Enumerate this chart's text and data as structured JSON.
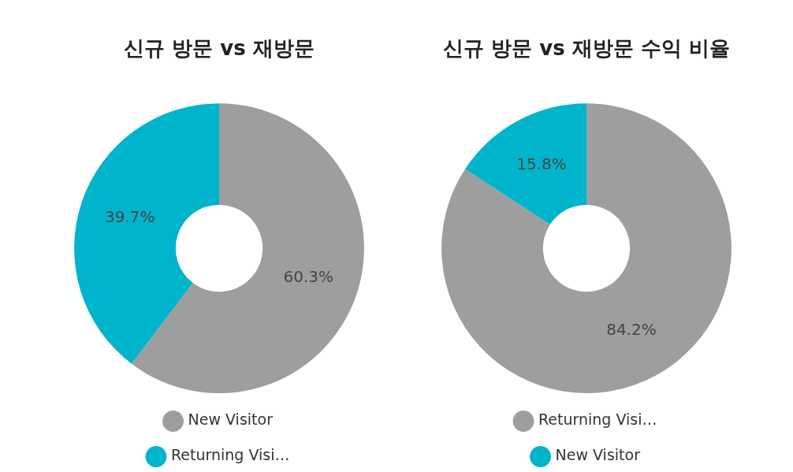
{
  "chart_data": [
    {
      "type": "donut",
      "title": "신규 방문 vs 재방문",
      "categories": [
        "New Visitor",
        "Returning Visi…"
      ],
      "values": [
        60.3,
        39.7
      ],
      "colors": [
        "#9e9e9e",
        "#00b4cc"
      ],
      "value_labels": [
        "60.3%",
        "39.7%"
      ],
      "legend": "bottom"
    },
    {
      "type": "donut",
      "title": "신규 방문 vs 재방문 수익 비율",
      "categories": [
        "Returning Visi…",
        "New Visitor"
      ],
      "values": [
        84.2,
        15.8
      ],
      "colors": [
        "#9e9e9e",
        "#00b4cc"
      ],
      "value_labels": [
        "84.2%",
        "15.8%"
      ],
      "legend": "bottom"
    }
  ]
}
